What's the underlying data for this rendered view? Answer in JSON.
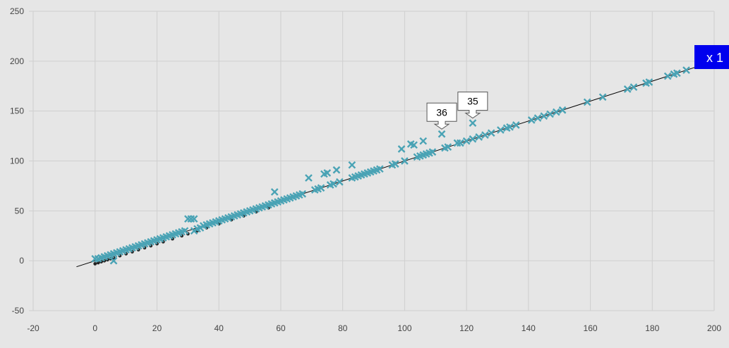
{
  "chart_data": {
    "type": "scatter",
    "title": "",
    "xlabel": "",
    "ylabel": "",
    "xlim": [
      -20,
      200
    ],
    "ylim": [
      -50,
      250
    ],
    "x_ticks": [
      -20,
      0,
      20,
      40,
      60,
      80,
      100,
      120,
      140,
      160,
      180,
      200
    ],
    "y_ticks": [
      -50,
      0,
      50,
      100,
      150,
      200,
      250
    ],
    "grid": true,
    "colors": {
      "background": "#e6e6e6",
      "grid": "#cfcfcf",
      "marker": "#4aa3b5",
      "dark_marker": "#222222",
      "fit_line": "#000000",
      "badge": "#0000ee"
    },
    "fit_line": {
      "from": [
        -6,
        -6
      ],
      "to": [
        200,
        200
      ]
    },
    "series": [
      {
        "marker": "x",
        "points": [
          [
            0,
            2
          ],
          [
            1,
            2
          ],
          [
            2,
            3
          ],
          [
            3,
            4
          ],
          [
            4,
            5
          ],
          [
            5,
            6
          ],
          [
            6,
            7
          ],
          [
            7,
            8
          ],
          [
            8,
            9
          ],
          [
            9,
            10
          ],
          [
            10,
            11
          ],
          [
            11,
            12
          ],
          [
            12,
            13
          ],
          [
            13,
            14
          ],
          [
            14,
            15
          ],
          [
            15,
            16
          ],
          [
            16,
            17
          ],
          [
            17,
            18
          ],
          [
            18,
            19
          ],
          [
            19,
            20
          ],
          [
            20,
            21
          ],
          [
            21,
            22
          ],
          [
            22,
            23
          ],
          [
            23,
            24
          ],
          [
            24,
            25
          ],
          [
            25,
            26
          ],
          [
            26,
            27
          ],
          [
            27,
            28
          ],
          [
            28,
            29
          ],
          [
            29,
            30
          ],
          [
            6,
            0
          ],
          [
            30,
            42
          ],
          [
            31,
            42
          ],
          [
            32,
            42
          ],
          [
            32,
            30
          ],
          [
            33,
            32
          ],
          [
            34,
            33
          ],
          [
            35,
            35
          ],
          [
            36,
            36
          ],
          [
            37,
            37
          ],
          [
            38,
            38
          ],
          [
            39,
            39
          ],
          [
            40,
            40
          ],
          [
            41,
            41
          ],
          [
            42,
            42
          ],
          [
            43,
            43
          ],
          [
            44,
            44
          ],
          [
            45,
            45
          ],
          [
            46,
            46
          ],
          [
            47,
            47
          ],
          [
            48,
            48
          ],
          [
            49,
            49
          ],
          [
            50,
            50
          ],
          [
            51,
            51
          ],
          [
            52,
            52
          ],
          [
            53,
            53
          ],
          [
            54,
            54
          ],
          [
            55,
            55
          ],
          [
            56,
            56
          ],
          [
            57,
            57
          ],
          [
            58,
            58
          ],
          [
            59,
            59
          ],
          [
            60,
            60
          ],
          [
            61,
            61
          ],
          [
            62,
            62
          ],
          [
            63,
            63
          ],
          [
            64,
            64
          ],
          [
            65,
            65
          ],
          [
            66,
            66
          ],
          [
            67,
            67
          ],
          [
            58,
            69
          ],
          [
            69,
            83
          ],
          [
            71,
            71
          ],
          [
            72,
            72
          ],
          [
            73,
            73
          ],
          [
            74,
            87
          ],
          [
            75,
            88
          ],
          [
            76,
            76
          ],
          [
            77,
            77
          ],
          [
            78,
            91
          ],
          [
            79,
            79
          ],
          [
            83,
            96
          ],
          [
            83,
            83
          ],
          [
            84,
            84
          ],
          [
            85,
            85
          ],
          [
            86,
            86
          ],
          [
            87,
            87
          ],
          [
            88,
            88
          ],
          [
            89,
            89
          ],
          [
            90,
            90
          ],
          [
            91,
            91
          ],
          [
            92,
            92
          ],
          [
            96,
            96
          ],
          [
            97,
            97
          ],
          [
            99,
            112
          ],
          [
            100,
            100
          ],
          [
            102,
            117
          ],
          [
            103,
            116
          ],
          [
            104,
            104
          ],
          [
            105,
            105
          ],
          [
            106,
            106
          ],
          [
            106,
            120
          ],
          [
            107,
            107
          ],
          [
            108,
            108
          ],
          [
            109,
            109
          ],
          [
            112,
            127
          ],
          [
            113,
            113
          ],
          [
            114,
            114
          ],
          [
            117,
            118
          ],
          [
            118,
            118
          ],
          [
            120,
            120
          ],
          [
            122,
            122
          ],
          [
            122,
            138
          ],
          [
            124,
            124
          ],
          [
            126,
            126
          ],
          [
            128,
            128
          ],
          [
            131,
            131
          ],
          [
            133,
            133
          ],
          [
            134,
            134
          ],
          [
            136,
            136
          ],
          [
            141,
            141
          ],
          [
            143,
            143
          ],
          [
            145,
            145
          ],
          [
            147,
            147
          ],
          [
            149,
            149
          ],
          [
            151,
            151
          ],
          [
            159,
            159
          ],
          [
            164,
            164
          ],
          [
            172,
            172
          ],
          [
            174,
            174
          ],
          [
            178,
            178
          ],
          [
            179,
            179
          ],
          [
            185,
            185
          ],
          [
            187,
            187
          ],
          [
            188,
            188
          ],
          [
            191,
            191
          ]
        ]
      },
      {
        "marker": "dot",
        "points": [
          [
            0,
            -3
          ],
          [
            1,
            -2
          ],
          [
            2,
            -1
          ],
          [
            3,
            0
          ],
          [
            4,
            1
          ],
          [
            5,
            2
          ],
          [
            6,
            3
          ],
          [
            8,
            5
          ],
          [
            10,
            7
          ],
          [
            12,
            9
          ],
          [
            14,
            11
          ],
          [
            16,
            13
          ],
          [
            18,
            15
          ],
          [
            20,
            17
          ],
          [
            22,
            19
          ],
          [
            25,
            22
          ],
          [
            28,
            25
          ],
          [
            30,
            27
          ],
          [
            33,
            30
          ],
          [
            36,
            33
          ],
          [
            40,
            37
          ],
          [
            44,
            41
          ],
          [
            48,
            45
          ],
          [
            52,
            49
          ],
          [
            56,
            53
          ]
        ]
      }
    ],
    "annotations": [
      {
        "label": "36",
        "point": [
          112,
          127
        ]
      },
      {
        "label": "35",
        "point": [
          122,
          138
        ]
      }
    ],
    "badge": {
      "label": "x 1",
      "anchor": "top-right"
    }
  }
}
